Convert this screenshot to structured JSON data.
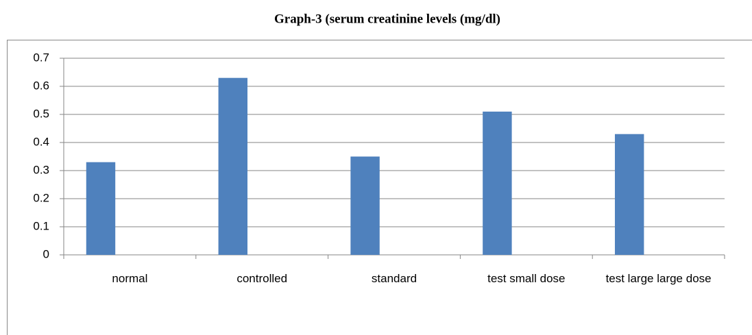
{
  "chart_data": {
    "type": "bar",
    "title": "Graph-3 (serum creatinine levels (mg/dl)",
    "categories": [
      "normal",
      "controlled",
      "standard",
      "test small dose",
      "test large large dose"
    ],
    "values": [
      0.33,
      0.63,
      0.35,
      0.51,
      0.43
    ],
    "color": "#4f81bd",
    "ylim": [
      0,
      0.7
    ],
    "yticks": [
      0,
      0.1,
      0.2,
      0.3,
      0.4,
      0.5,
      0.6,
      0.7
    ],
    "grid": true
  }
}
